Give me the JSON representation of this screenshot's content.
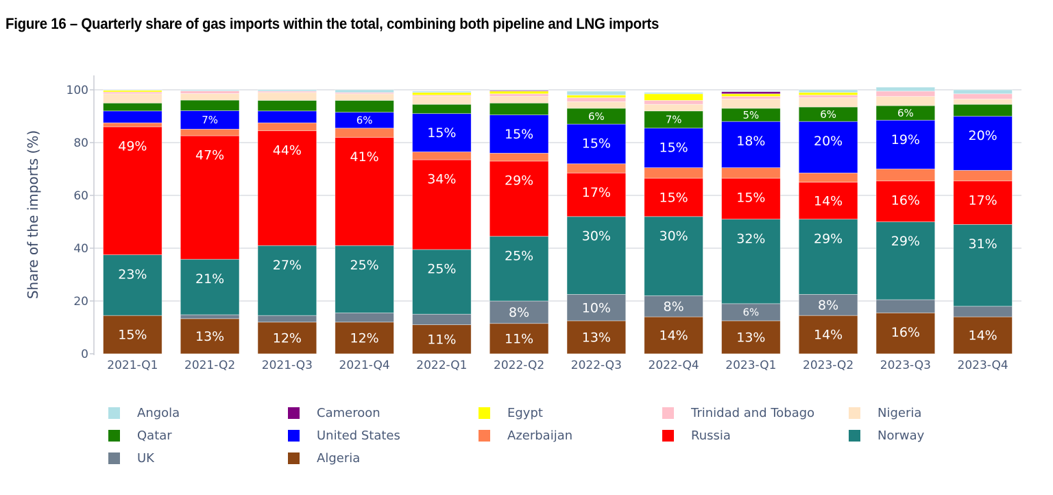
{
  "figure_title": "Figure 16 – Quarterly share of gas imports within the total, combining both pipeline and LNG imports",
  "chart_data": {
    "type": "bar",
    "stacked": true,
    "title": "Figure 16 – Quarterly share of gas imports within the total, combining both pipeline and LNG imports",
    "xlabel": "",
    "ylabel": "Share of the imports (%)",
    "ylim": [
      0,
      100
    ],
    "yticks": [
      0,
      20,
      40,
      60,
      80,
      100
    ],
    "grid": true,
    "legend_position": "bottom",
    "categories": [
      "2021-Q1",
      "2021-Q2",
      "2021-Q3",
      "2021-Q4",
      "2022-Q1",
      "2022-Q2",
      "2022-Q3",
      "2022-Q4",
      "2023-Q1",
      "2023-Q2",
      "2023-Q3",
      "2023-Q4"
    ],
    "series": [
      {
        "name": "Algeria",
        "color": "#8B4513",
        "values": [
          14.5,
          13.3,
          12,
          12,
          11,
          11.5,
          12.5,
          14,
          12.5,
          14.5,
          15.5,
          14
        ],
        "labels": [
          "15%",
          "13%",
          "12%",
          "12%",
          "11%",
          "11%",
          "13%",
          "14%",
          "13%",
          "14%",
          "16%",
          "14%"
        ]
      },
      {
        "name": "UK",
        "color": "#708090",
        "values": [
          0,
          1.5,
          2.5,
          3.5,
          4,
          8.5,
          10,
          8,
          6.5,
          8,
          5,
          4
        ],
        "labels": [
          "",
          "",
          "",
          "",
          "",
          "8%",
          "10%",
          "8%",
          "6%",
          "8%",
          "",
          ""
        ]
      },
      {
        "name": "Norway",
        "color": "#1F7F7D",
        "values": [
          23,
          21,
          26.5,
          25.5,
          24.5,
          24.5,
          29.5,
          30,
          32,
          28.5,
          29.5,
          31
        ],
        "labels": [
          "23%",
          "21%",
          "27%",
          "25%",
          "25%",
          "25%",
          "30%",
          "30%",
          "32%",
          "29%",
          "29%",
          "31%"
        ]
      },
      {
        "name": "Russia",
        "color": "#FF0000",
        "values": [
          48.5,
          46.8,
          43.5,
          41,
          34,
          28.5,
          16.5,
          14.5,
          15.5,
          14,
          15.5,
          16.5
        ],
        "labels": [
          "49%",
          "47%",
          "44%",
          "41%",
          "34%",
          "29%",
          "17%",
          "15%",
          "15%",
          "14%",
          "16%",
          "17%"
        ]
      },
      {
        "name": "Azerbaijan",
        "color": "#FF7F50",
        "values": [
          1.5,
          2.5,
          3,
          3.5,
          3,
          3,
          3.5,
          4,
          4,
          3.5,
          4.5,
          4
        ],
        "labels": [
          "",
          "",
          "",
          "",
          "",
          "",
          "",
          "",
          "",
          "",
          "",
          ""
        ]
      },
      {
        "name": "United States",
        "color": "#0000FF",
        "values": [
          4.5,
          7,
          4.5,
          6,
          14.5,
          14.5,
          15,
          15,
          17.5,
          19.5,
          18.5,
          20.5
        ],
        "labels": [
          "",
          "7%",
          "",
          "6%",
          "15%",
          "15%",
          "15%",
          "15%",
          "18%",
          "20%",
          "19%",
          "20%"
        ]
      },
      {
        "name": "Qatar",
        "color": "#1A7F00",
        "values": [
          3,
          4,
          4,
          4.5,
          3.5,
          4.5,
          6,
          6.5,
          5,
          5.5,
          5.5,
          4.5
        ],
        "labels": [
          "",
          "",
          "",
          "",
          "",
          "",
          "6%",
          "7%",
          "5%",
          "6%",
          "6%",
          ""
        ]
      },
      {
        "name": "Nigeria",
        "color": "#FFE4C4",
        "values": [
          3.5,
          2.5,
          3,
          2.5,
          3,
          2.5,
          2.5,
          2.5,
          3.5,
          3.5,
          3.5,
          2
        ],
        "labels": [
          "",
          "",
          "",
          "",
          "",
          "",
          "",
          "",
          "",
          "",
          "",
          ""
        ]
      },
      {
        "name": "Trinidad and Tobago",
        "color": "#FFC0CB",
        "values": [
          0.7,
          1,
          0.5,
          0.5,
          0.5,
          1,
          1.5,
          1.5,
          1,
          1,
          2,
          2
        ],
        "labels": [
          "",
          "",
          "",
          "",
          "",
          "",
          "",
          "",
          "",
          "",
          "",
          ""
        ]
      },
      {
        "name": "Egypt",
        "color": "#FFFF00",
        "values": [
          0.6,
          0,
          0,
          0,
          1,
          1,
          1,
          2.5,
          1,
          1,
          0,
          0
        ],
        "labels": [
          "",
          "",
          "",
          "",
          "",
          "",
          "",
          "",
          "",
          "",
          "",
          ""
        ]
      },
      {
        "name": "Cameroon",
        "color": "#800080",
        "values": [
          0,
          0,
          0,
          0,
          0,
          0.3,
          0,
          0,
          0.8,
          0,
          0,
          0
        ],
        "labels": [
          "",
          "",
          "",
          "",
          "",
          "",
          "",
          "",
          "",
          "",
          "",
          ""
        ]
      },
      {
        "name": "Angola",
        "color": "#B0E0E6",
        "values": [
          0.2,
          0.4,
          0.5,
          1,
          0.5,
          0.2,
          1.5,
          0.5,
          0.3,
          1,
          1.5,
          1.5
        ],
        "labels": [
          "",
          "",
          "",
          "",
          "",
          "",
          "",
          "",
          "",
          "",
          "",
          ""
        ]
      }
    ],
    "legend": [
      {
        "name": "Angola",
        "color": "#B0E0E6"
      },
      {
        "name": "Cameroon",
        "color": "#800080"
      },
      {
        "name": "Egypt",
        "color": "#FFFF00"
      },
      {
        "name": "Trinidad and Tobago",
        "color": "#FFC0CB"
      },
      {
        "name": "Nigeria",
        "color": "#FFE4C4"
      },
      {
        "name": "Qatar",
        "color": "#1A7F00"
      },
      {
        "name": "United States",
        "color": "#0000FF"
      },
      {
        "name": "Azerbaijan",
        "color": "#FF7F50"
      },
      {
        "name": "Russia",
        "color": "#FF0000"
      },
      {
        "name": "Norway",
        "color": "#1F7F7D"
      },
      {
        "name": "UK",
        "color": "#708090"
      },
      {
        "name": "Algeria",
        "color": "#8B4513"
      }
    ]
  }
}
